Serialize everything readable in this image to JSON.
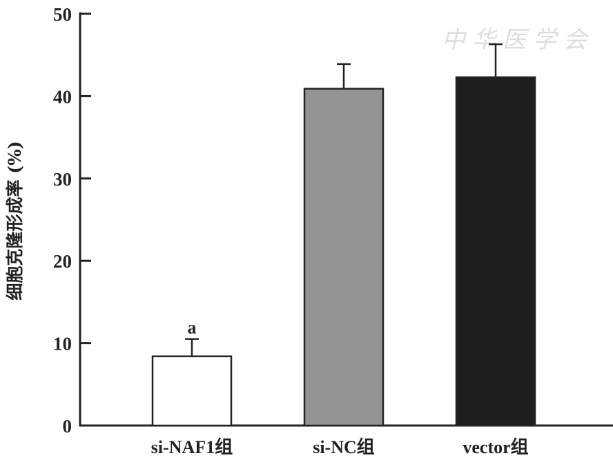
{
  "chart_data": {
    "type": "bar",
    "title": "",
    "xlabel": "",
    "ylabel": "细胞克隆形成率 (%)",
    "ylim": [
      0,
      50
    ],
    "yticks": [
      0,
      10,
      20,
      30,
      40,
      50
    ],
    "categories": [
      "si-NAF1组",
      "si-NC组",
      "vector组"
    ],
    "values": [
      8.4,
      40.9,
      42.3
    ],
    "errors": [
      2.1,
      3.0,
      4.0
    ],
    "colors": [
      "#ffffff",
      "#939393",
      "#1e1e1e"
    ],
    "annotations": [
      "a",
      "",
      ""
    ],
    "grid": false
  },
  "watermark": "中华医学会"
}
